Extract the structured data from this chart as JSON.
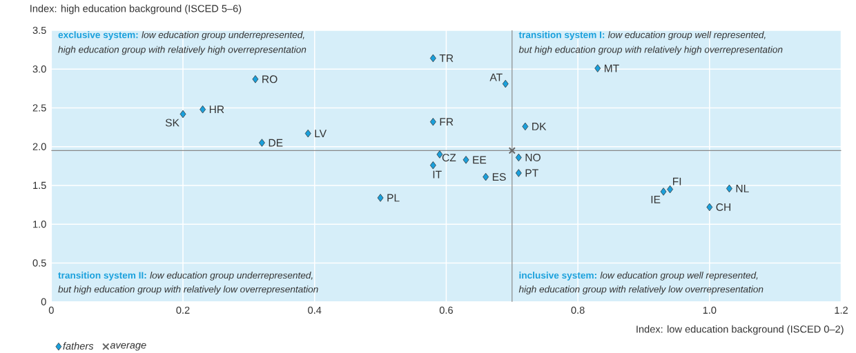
{
  "chart_data": {
    "type": "scatter",
    "xlabel": "Index: low education background (ISCED 0–2)",
    "ylabel": "Index: high education background (ISCED 5–6)",
    "xlim": [
      0,
      1.2
    ],
    "ylim": [
      0,
      3.5
    ],
    "xticks": [
      0,
      0.2,
      0.4,
      0.6,
      0.8,
      {
        "value": 1,
        "label": "1.0"
      },
      1.2
    ],
    "yticks": [
      0,
      0.5,
      {
        "value": 1,
        "label": "1.0"
      },
      1.5,
      {
        "value": 2,
        "label": "2.0"
      },
      2.5,
      {
        "value": 3,
        "label": "3.0"
      },
      3.5
    ],
    "grid": true,
    "legend": "bottom left",
    "series": [
      {
        "name": "fathers",
        "color": "#1aa0dc",
        "marker": "diamond",
        "x": [
          0.2,
          0.23,
          0.31,
          0.32,
          0.39,
          0.5,
          0.58,
          0.58,
          0.59,
          0.58,
          0.63,
          0.66,
          0.69,
          0.71,
          0.71,
          0.72,
          0.83,
          0.93,
          0.94,
          1.03,
          1.0
        ],
        "values": [
          2.42,
          2.48,
          2.87,
          2.05,
          2.17,
          1.34,
          3.14,
          2.32,
          1.9,
          1.76,
          1.83,
          1.61,
          2.81,
          1.86,
          1.66,
          2.26,
          3.01,
          1.42,
          1.45,
          1.46,
          1.22
        ]
      },
      {
        "name": "average",
        "color": "#666666",
        "marker": "cross",
        "x": [
          0.7
        ],
        "values": [
          1.95
        ]
      }
    ],
    "ref_lines": [
      {
        "axis": "x",
        "value": 0.7,
        "color": "#888888"
      },
      {
        "axis": "y",
        "value": 1.95,
        "color": "#888888"
      }
    ],
    "annotations": [
      "exclusive system:",
      "low education group underrepresented,",
      "high education group with relatively high overrepresentation",
      "transition system I:",
      "low education group well represented,",
      "but high education group with relatively high overrepresentation",
      "transition system II:",
      "low education group underrepresented,",
      "but high education group with relatively low overrepresentation",
      "inclusive system:",
      "low education group well represented,",
      "high education group with relatively low overrepresentation",
      {
        "text": "SK",
        "x": 0.2,
        "y": 2.42
      },
      {
        "text": "HR",
        "x": 0.23,
        "y": 2.48
      },
      {
        "text": "RO",
        "x": 0.31,
        "y": 2.87
      },
      {
        "text": "DE",
        "x": 0.32,
        "y": 2.05
      },
      {
        "text": "LV",
        "x": 0.39,
        "y": 2.17
      },
      {
        "text": "PL",
        "x": 0.5,
        "y": 1.34
      },
      {
        "text": "TR",
        "x": 0.58,
        "y": 3.14
      },
      {
        "text": "FR",
        "x": 0.58,
        "y": 2.32
      },
      {
        "text": "CZ",
        "x": 0.59,
        "y": 1.9
      },
      {
        "text": "IT",
        "x": 0.58,
        "y": 1.76
      },
      {
        "text": "EE",
        "x": 0.63,
        "y": 1.83
      },
      {
        "text": "ES",
        "x": 0.66,
        "y": 1.61
      },
      {
        "text": "AT",
        "x": 0.69,
        "y": 2.81
      },
      {
        "text": "NO",
        "x": 0.71,
        "y": 1.86
      },
      {
        "text": "PT",
        "x": 0.71,
        "y": 1.66
      },
      {
        "text": "DK",
        "x": 0.72,
        "y": 2.26
      },
      {
        "text": "MT",
        "x": 0.83,
        "y": 3.01
      },
      {
        "text": "IE",
        "x": 0.93,
        "y": 1.42
      },
      {
        "text": "FI",
        "x": 0.94,
        "y": 1.45
      },
      {
        "text": "NL",
        "x": 1.03,
        "y": 1.46
      },
      {
        "text": "CH",
        "x": 1.0,
        "y": 1.22
      }
    ]
  }
}
